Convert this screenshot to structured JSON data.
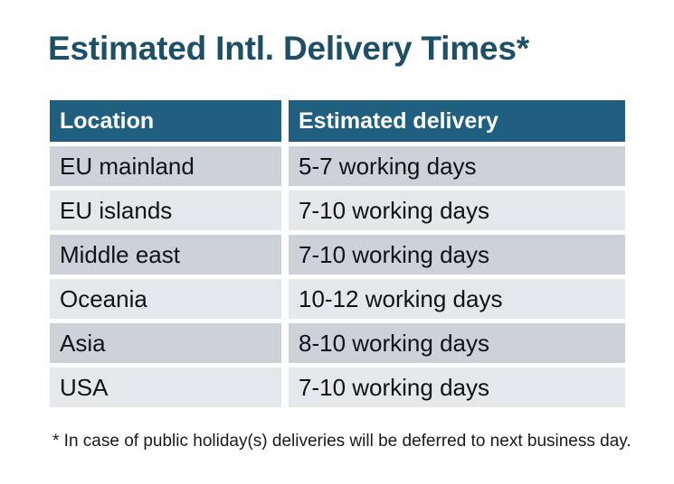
{
  "title": "Estimated Intl. Delivery Times*",
  "table": {
    "headers": [
      "Location",
      "Estimated delivery"
    ],
    "rows": [
      {
        "location": "EU mainland",
        "delivery": "5-7 working days"
      },
      {
        "location": "EU islands",
        "delivery": "7-10 working days"
      },
      {
        "location": "Middle east",
        "delivery": "7-10 working days"
      },
      {
        "location": "Oceania",
        "delivery": "10-12 working days"
      },
      {
        "location": "Asia",
        "delivery": "8-10 working days"
      },
      {
        "location": "USA",
        "delivery": "7-10 working days"
      }
    ]
  },
  "footnote": "* In case of public holiday(s) deliveries will be deferred to next business day.",
  "colors": {
    "background": "#ffffff",
    "title_text": "#1d4f66",
    "header_bg": "#215f80",
    "header_text": "#ffffff",
    "row_dark": "#cdd1d8",
    "row_light": "#e5e8eb",
    "body_text": "#121212"
  }
}
